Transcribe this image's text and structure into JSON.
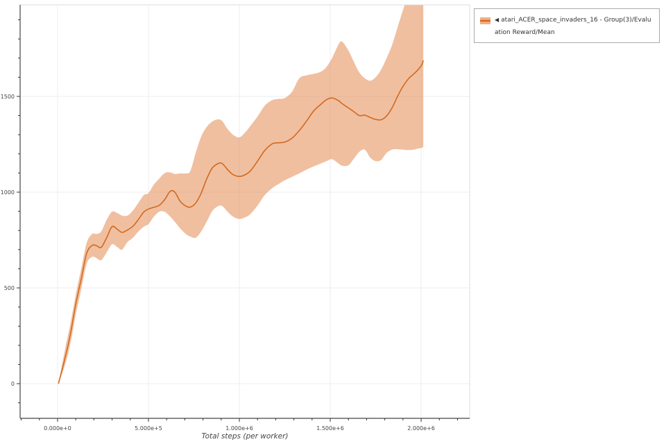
{
  "legend": {
    "marker": "◀",
    "label": "atari_ACER_space_invaders_16 - Group(3)/Evaluation Reward/Mean",
    "line_color": "#d2691e",
    "band_color": "#efb185"
  },
  "chart_data": {
    "type": "line",
    "title": "",
    "xlabel": "Total steps (per worker)",
    "ylabel": "",
    "legend_position": "top-right",
    "grid": true,
    "series_name": "atari_ACER_space_invaders_16 - Group(3)/Evaluation Reward/Mean",
    "x_tick_labels": [
      "0.000e+0",
      "5.000e+5",
      "1.000e+6",
      "1.500e+6",
      "2.000e+6"
    ],
    "x_tick_values": [
      0,
      500000,
      1000000,
      1500000,
      2000000
    ],
    "y_tick_labels": [
      "0",
      "500",
      "1000",
      "1500"
    ],
    "y_tick_values": [
      0,
      500,
      1000,
      1500
    ],
    "x_minor_tick_step": 100000,
    "y_minor_tick_step": 100,
    "xlim": [
      -206000,
      2267000
    ],
    "ylim": [
      -181,
      1978
    ],
    "line_color": "#d2691e",
    "band_fill": "rgba(224,122,57,0.48)",
    "grid_color": "#ededed",
    "spine_dark": "#7a7a7a",
    "spine_light": "#dcdcdc",
    "tick_color": "#333333",
    "x": [
      5000,
      40000,
      70000,
      100000,
      130000,
      160000,
      190000,
      215000,
      240000,
      270000,
      300000,
      330000,
      355000,
      385000,
      415000,
      445000,
      475000,
      500000,
      530000,
      560000,
      590000,
      620000,
      645000,
      675000,
      705000,
      730000,
      760000,
      790000,
      820000,
      850000,
      880000,
      905000,
      935000,
      965000,
      1000000,
      1030000,
      1060000,
      1100000,
      1140000,
      1180000,
      1215000,
      1250000,
      1290000,
      1330000,
      1370000,
      1410000,
      1450000,
      1480000,
      1510000,
      1545000,
      1565000,
      1600000,
      1630000,
      1660000,
      1690000,
      1720000,
      1750000,
      1780000,
      1810000,
      1840000,
      1870000,
      1900000,
      1930000,
      1960000,
      1985000,
      2005000,
      2012000
    ],
    "mean": [
      0,
      130,
      255,
      415,
      545,
      680,
      722,
      720,
      712,
      762,
      820,
      805,
      790,
      803,
      822,
      858,
      897,
      912,
      921,
      932,
      962,
      1005,
      1000,
      952,
      928,
      922,
      943,
      995,
      1068,
      1125,
      1148,
      1150,
      1118,
      1092,
      1082,
      1090,
      1110,
      1162,
      1218,
      1252,
      1258,
      1262,
      1282,
      1322,
      1372,
      1425,
      1460,
      1483,
      1492,
      1478,
      1462,
      1440,
      1420,
      1400,
      1402,
      1390,
      1380,
      1378,
      1398,
      1440,
      1500,
      1552,
      1592,
      1618,
      1642,
      1668,
      1688
    ],
    "band_low": [
      0,
      95,
      205,
      360,
      490,
      625,
      662,
      655,
      645,
      685,
      728,
      712,
      700,
      740,
      762,
      795,
      820,
      833,
      872,
      898,
      897,
      872,
      845,
      810,
      782,
      768,
      762,
      795,
      845,
      900,
      925,
      928,
      898,
      872,
      860,
      868,
      885,
      930,
      985,
      1020,
      1042,
      1062,
      1080,
      1098,
      1118,
      1135,
      1150,
      1162,
      1172,
      1150,
      1138,
      1140,
      1175,
      1210,
      1222,
      1180,
      1162,
      1168,
      1205,
      1222,
      1224,
      1222,
      1220,
      1222,
      1228,
      1232,
      1237
    ],
    "band_high": [
      0,
      175,
      310,
      465,
      600,
      735,
      782,
      782,
      795,
      855,
      898,
      890,
      878,
      878,
      905,
      945,
      985,
      995,
      1040,
      1072,
      1100,
      1103,
      1095,
      1098,
      1098,
      1110,
      1205,
      1290,
      1340,
      1368,
      1380,
      1372,
      1330,
      1300,
      1286,
      1310,
      1345,
      1395,
      1452,
      1480,
      1487,
      1492,
      1525,
      1595,
      1610,
      1618,
      1630,
      1655,
      1700,
      1770,
      1786,
      1740,
      1680,
      1625,
      1595,
      1582,
      1600,
      1640,
      1700,
      1768,
      1860,
      1950,
      2030,
      2080,
      2100,
      2100,
      2100
    ]
  }
}
